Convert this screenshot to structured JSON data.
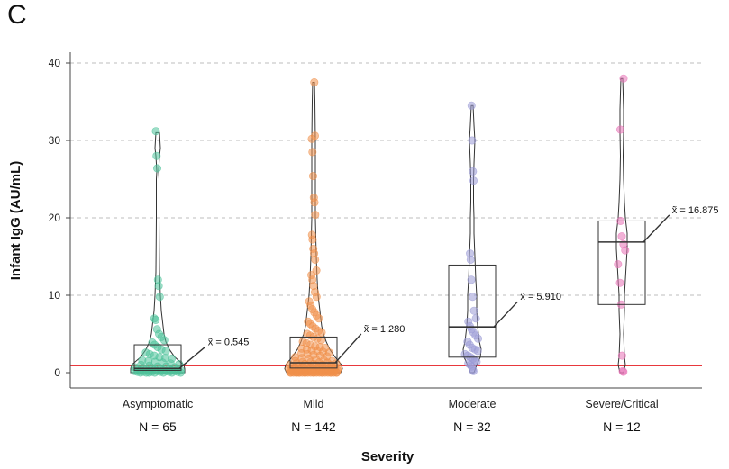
{
  "panel_label": "C",
  "colors": {
    "Asymptomatic": "#4fc29a",
    "Mild": "#f0904a",
    "Moderate": "#9a9ad6",
    "Severe/Critical": "#e873b6",
    "reference_line": "#e8383d",
    "grid": "#bdbdbd"
  },
  "chart_data": {
    "type": "box-violin-strip",
    "xlabel": "Severity",
    "ylabel": "Infant IgG (AU/mL)",
    "ylim": [
      -2,
      42
    ],
    "yticks": [
      0,
      10,
      20,
      30,
      40
    ],
    "grid": "horizontal dashed",
    "reference_line_y": 0.9,
    "categories": [
      "Asymptomatic",
      "Mild",
      "Moderate",
      "Severe/Critical"
    ],
    "n_labels": [
      "N = 65",
      "N = 142",
      "N = 32",
      "N = 12"
    ],
    "median_labels": [
      "x̃ = 0.545",
      "x̃ = 1.280",
      "x̃ = 5.910",
      "x̃ = 16.875"
    ],
    "box": [
      {
        "q1": 0.3,
        "median": 0.545,
        "q3": 3.6
      },
      {
        "q1": 0.6,
        "median": 1.28,
        "q3": 4.6
      },
      {
        "q1": 2.0,
        "median": 5.91,
        "q3": 13.9
      },
      {
        "q1": 8.8,
        "median": 16.875,
        "q3": 19.6
      }
    ],
    "violin": [
      {
        "ymax": 31.0,
        "profile": [
          [
            0,
            30
          ],
          [
            0.5,
            30
          ],
          [
            1,
            29
          ],
          [
            1.5,
            24
          ],
          [
            2,
            19
          ],
          [
            3,
            13
          ],
          [
            4,
            9
          ],
          [
            5,
            7
          ],
          [
            6,
            6
          ],
          [
            8,
            4
          ],
          [
            10,
            3
          ],
          [
            13,
            2
          ],
          [
            20,
            1.5
          ],
          [
            25,
            1.5
          ],
          [
            26,
            1
          ],
          [
            28,
            2
          ],
          [
            29,
            3
          ],
          [
            31,
            2
          ]
        ]
      },
      {
        "ymax": 37.5,
        "profile": [
          [
            0,
            30
          ],
          [
            0.5,
            32
          ],
          [
            1,
            31
          ],
          [
            2,
            24
          ],
          [
            3,
            18
          ],
          [
            4,
            14
          ],
          [
            5,
            11
          ],
          [
            6,
            9
          ],
          [
            8,
            7
          ],
          [
            10,
            5
          ],
          [
            12,
            4
          ],
          [
            15,
            3
          ],
          [
            20,
            2
          ],
          [
            25,
            2
          ],
          [
            30,
            2
          ],
          [
            35,
            1.5
          ],
          [
            37.5,
            1
          ]
        ]
      },
      {
        "ymax": 34.5,
        "profile": [
          [
            0,
            2
          ],
          [
            1,
            5
          ],
          [
            2,
            9
          ],
          [
            3,
            10
          ],
          [
            4,
            8
          ],
          [
            6,
            6
          ],
          [
            8,
            5
          ],
          [
            10,
            5
          ],
          [
            12,
            4
          ],
          [
            15,
            3
          ],
          [
            18,
            2
          ],
          [
            20,
            2
          ],
          [
            22,
            1.5
          ],
          [
            25,
            1.5
          ],
          [
            27,
            2
          ],
          [
            30,
            3
          ],
          [
            32,
            2
          ],
          [
            34.5,
            1
          ]
        ]
      },
      {
        "ymax": 38.0,
        "profile": [
          [
            0,
            2
          ],
          [
            1,
            4
          ],
          [
            2,
            3
          ],
          [
            5,
            2
          ],
          [
            8,
            3
          ],
          [
            10,
            3
          ],
          [
            12,
            4
          ],
          [
            14,
            5
          ],
          [
            16,
            6
          ],
          [
            18,
            6
          ],
          [
            20,
            4
          ],
          [
            22,
            3
          ],
          [
            25,
            2
          ],
          [
            28,
            1.5
          ],
          [
            31,
            2
          ],
          [
            34,
            2
          ],
          [
            38,
            1
          ]
        ]
      }
    ],
    "points": [
      [
        31.2,
        28.0,
        26.4,
        12.0,
        11.2,
        9.8,
        7.0,
        6.8,
        5.6,
        5.0,
        4.6,
        4.2,
        3.9,
        3.6,
        3.3,
        3.0,
        2.8,
        2.6,
        2.4,
        2.2,
        2.0,
        1.9,
        1.8,
        1.6,
        1.5,
        1.4,
        1.3,
        1.2,
        1.1,
        1.0,
        0.9,
        0.8,
        0.8,
        0.7,
        0.7,
        0.6,
        0.6,
        0.5,
        0.5,
        0.5,
        0.4,
        0.4,
        0.4,
        0.3,
        0.3,
        0.3,
        0.3,
        0.2,
        0.2,
        0.2,
        0.2,
        0.2,
        0.1,
        0.1,
        0.1,
        0.1,
        0.1,
        0.1,
        0.0,
        0.0,
        0.0,
        0.0,
        0.0,
        0.0,
        0.0
      ],
      [
        37.5,
        30.6,
        30.2,
        28.5,
        25.4,
        22.6,
        22.0,
        20.4,
        17.8,
        17.2,
        16.0,
        15.4,
        14.6,
        13.2,
        12.6,
        12.0,
        11.2,
        10.4,
        9.8,
        9.2,
        8.7,
        8.2,
        7.8,
        7.4,
        7.0,
        6.6,
        6.3,
        6.0,
        5.7,
        5.4,
        5.2,
        5.0,
        4.8,
        4.6,
        4.4,
        4.2,
        4.0,
        3.8,
        3.6,
        3.4,
        3.3,
        3.2,
        3.1,
        3.0,
        2.9,
        2.8,
        2.7,
        2.6,
        2.5,
        2.4,
        2.3,
        2.2,
        2.1,
        2.0,
        1.9,
        1.8,
        1.7,
        1.6,
        1.5,
        1.5,
        1.4,
        1.4,
        1.3,
        1.3,
        1.2,
        1.2,
        1.1,
        1.1,
        1.0,
        1.0,
        1.0,
        0.9,
        0.9,
        0.9,
        0.8,
        0.8,
        0.8,
        0.7,
        0.7,
        0.7,
        0.6,
        0.6,
        0.6,
        0.6,
        0.5,
        0.5,
        0.5,
        0.5,
        0.4,
        0.4,
        0.4,
        0.4,
        0.4,
        0.3,
        0.3,
        0.3,
        0.3,
        0.3,
        0.3,
        0.2,
        0.2,
        0.2,
        0.2,
        0.2,
        0.2,
        0.2,
        0.1,
        0.1,
        0.1,
        0.1,
        0.1,
        0.1,
        0.1,
        0.1,
        0.1,
        0.0,
        0.0,
        0.0,
        0.0,
        0.0,
        0.0,
        0.0,
        0.0,
        0.0,
        0.0,
        0.0,
        0.0,
        0.0,
        0.0,
        0.0,
        0.0,
        0.0,
        0.0,
        0.0,
        0.0,
        0.0,
        0.0,
        0.0,
        0.0,
        0.0
      ],
      [
        34.5,
        30.0,
        26.0,
        24.8,
        15.4,
        14.6,
        12.0,
        9.8,
        8.0,
        7.0,
        6.6,
        6.0,
        5.6,
        5.2,
        4.8,
        4.4,
        4.0,
        3.6,
        3.2,
        3.0,
        2.8,
        2.4,
        2.2,
        2.0,
        1.8,
        1.6,
        1.4,
        1.2,
        1.0,
        0.8,
        0.4,
        0.2
      ],
      [
        38.0,
        31.4,
        19.6,
        17.6,
        16.6,
        15.8,
        14.0,
        11.6,
        8.8,
        2.2,
        0.2,
        0.1
      ]
    ]
  }
}
